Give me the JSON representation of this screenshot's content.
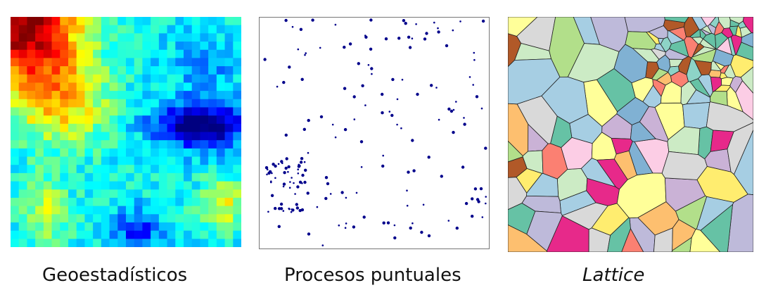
{
  "panels": [
    {
      "id": "geostatistics",
      "caption": "Geoestadísticos",
      "colormap": "jet"
    },
    {
      "id": "point-processes",
      "caption": "Procesos puntuales",
      "point_color": "#00008b"
    },
    {
      "id": "lattice",
      "caption": "Lattice",
      "palette": [
        "#e7298a",
        "#a6cee3",
        "#b2df8a",
        "#fdbf6f",
        "#cab2d6",
        "#ffff99",
        "#fb8072",
        "#8dd3c7",
        "#bebada",
        "#80b1d3",
        "#fccde5",
        "#d9d9d9",
        "#ccebc5",
        "#ffed6f",
        "#b15928",
        "#66c2a5"
      ]
    }
  ]
}
